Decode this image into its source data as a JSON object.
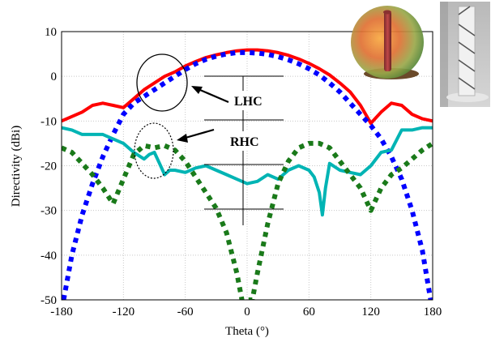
{
  "chart_data": {
    "type": "line",
    "title": "",
    "xlabel": "Theta (°)",
    "ylabel": "Directivity (dBi)",
    "xlim": [
      -180,
      180
    ],
    "ylim": [
      -50,
      10
    ],
    "xticks": [
      -180,
      -120,
      -60,
      0,
      60,
      120,
      180
    ],
    "yticks": [
      10,
      0,
      -10,
      -20,
      -30,
      -40,
      -50
    ],
    "grid": true,
    "legend_labels": [
      "LHC",
      "RHC"
    ],
    "series": [
      {
        "color": "#ff0000",
        "style": "solid",
        "x": [
          -180,
          -170,
          -160,
          -150,
          -140,
          -130,
          -120,
          -110,
          -100,
          -90,
          -80,
          -70,
          -60,
          -50,
          -40,
          -30,
          -20,
          -10,
          0,
          10,
          20,
          30,
          40,
          50,
          60,
          70,
          80,
          90,
          100,
          110,
          120,
          130,
          140,
          150,
          160,
          170,
          180
        ],
        "y": [
          -10,
          -9,
          -8,
          -6.5,
          -6,
          -6.5,
          -7,
          -5,
          -3,
          -1.5,
          0,
          1,
          2.3,
          3.3,
          4.2,
          4.8,
          5.3,
          5.7,
          5.9,
          5.9,
          5.7,
          5.3,
          4.7,
          3.9,
          2.9,
          1.7,
          0.3,
          -1.5,
          -3.5,
          -6.5,
          -10.5,
          -8,
          -6,
          -6.5,
          -8.5,
          -9.5,
          -10
        ]
      },
      {
        "color": "#0000ff",
        "style": "dotted",
        "x": [
          -178,
          -170,
          -160,
          -150,
          -140,
          -130,
          -120,
          -110,
          -100,
          -90,
          -80,
          -70,
          -60,
          -50,
          -40,
          -30,
          -20,
          -10,
          0,
          10,
          20,
          30,
          40,
          50,
          60,
          70,
          80,
          90,
          100,
          110,
          120,
          130,
          140,
          150,
          160,
          170,
          178
        ],
        "y": [
          -50,
          -40,
          -31,
          -24,
          -18,
          -13,
          -8.5,
          -6,
          -4.5,
          -3,
          -1.5,
          0,
          1.5,
          2.8,
          3.8,
          4.5,
          5,
          5.3,
          5.3,
          5.2,
          4.9,
          4.4,
          3.7,
          2.8,
          1.7,
          0.3,
          -1.5,
          -3.5,
          -6,
          -8.5,
          -11,
          -14,
          -18,
          -23,
          -30,
          -39,
          -50
        ]
      },
      {
        "color": "#00b4b4",
        "style": "solid",
        "x": [
          -180,
          -170,
          -160,
          -150,
          -140,
          -130,
          -120,
          -110,
          -100,
          -95,
          -90,
          -85,
          -80,
          -75,
          -70,
          -60,
          -50,
          -40,
          -30,
          -20,
          -10,
          0,
          10,
          20,
          30,
          40,
          50,
          60,
          65,
          70,
          73,
          76,
          80,
          90,
          100,
          110,
          120,
          130,
          140,
          150,
          160,
          170,
          180
        ],
        "y": [
          -11.5,
          -12,
          -13,
          -13,
          -13,
          -14,
          -15,
          -17,
          -18.5,
          -17.5,
          -17,
          -19.5,
          -22,
          -21,
          -21,
          -21.5,
          -20.5,
          -20,
          -21,
          -22,
          -23,
          -24,
          -23.5,
          -22,
          -23,
          -21,
          -20,
          -21,
          -22.5,
          -26,
          -31,
          -25,
          -19.5,
          -21,
          -21.5,
          -22,
          -20,
          -17,
          -16.5,
          -12,
          -12,
          -11.5,
          -11.5
        ]
      },
      {
        "color": "#1a7a1a",
        "style": "dotted",
        "x": [
          -180,
          -170,
          -160,
          -150,
          -140,
          -130,
          -120,
          -110,
          -100,
          -90,
          -80,
          -70,
          -60,
          -50,
          -40,
          -30,
          -20,
          -10,
          -5,
          0,
          5,
          10,
          20,
          30,
          40,
          50,
          60,
          70,
          80,
          90,
          100,
          110,
          120,
          130,
          140,
          150,
          160,
          170,
          180
        ],
        "y": [
          -16,
          -17,
          -19.5,
          -22,
          -25,
          -28.5,
          -23,
          -17.5,
          -15.5,
          -16,
          -15.5,
          -16.5,
          -19,
          -22.5,
          -26,
          -29.5,
          -35,
          -44,
          -50,
          -50,
          -50,
          -44,
          -33,
          -24,
          -19,
          -16,
          -15,
          -15,
          -16,
          -19,
          -22,
          -25,
          -30,
          -25,
          -22,
          -20.5,
          -18.5,
          -16.5,
          -15
        ]
      }
    ]
  },
  "icons": {
    "inset_left": "spherical-radome-antenna-render",
    "inset_right": "helical-antenna-photo"
  }
}
